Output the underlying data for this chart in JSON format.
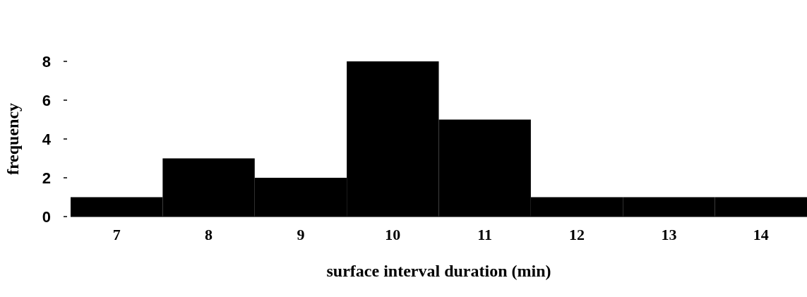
{
  "chart_data": {
    "type": "histogram",
    "xlabel": "surface interval duration (min)",
    "ylabel": "frequency",
    "bins": [
      6.5,
      7.5,
      8.5,
      9.5,
      10.5,
      11.5,
      12.5,
      13.5,
      14.5
    ],
    "values": [
      1,
      3,
      2,
      8,
      5,
      1,
      1,
      1
    ],
    "color": "#000000",
    "xlim": [
      6.5,
      14.5
    ],
    "xticks": [
      7,
      8,
      9,
      10,
      11,
      12,
      13,
      14
    ],
    "ylim": [
      0,
      8
    ],
    "yticks": [
      0,
      2,
      4,
      6,
      8
    ],
    "grid": false
  }
}
